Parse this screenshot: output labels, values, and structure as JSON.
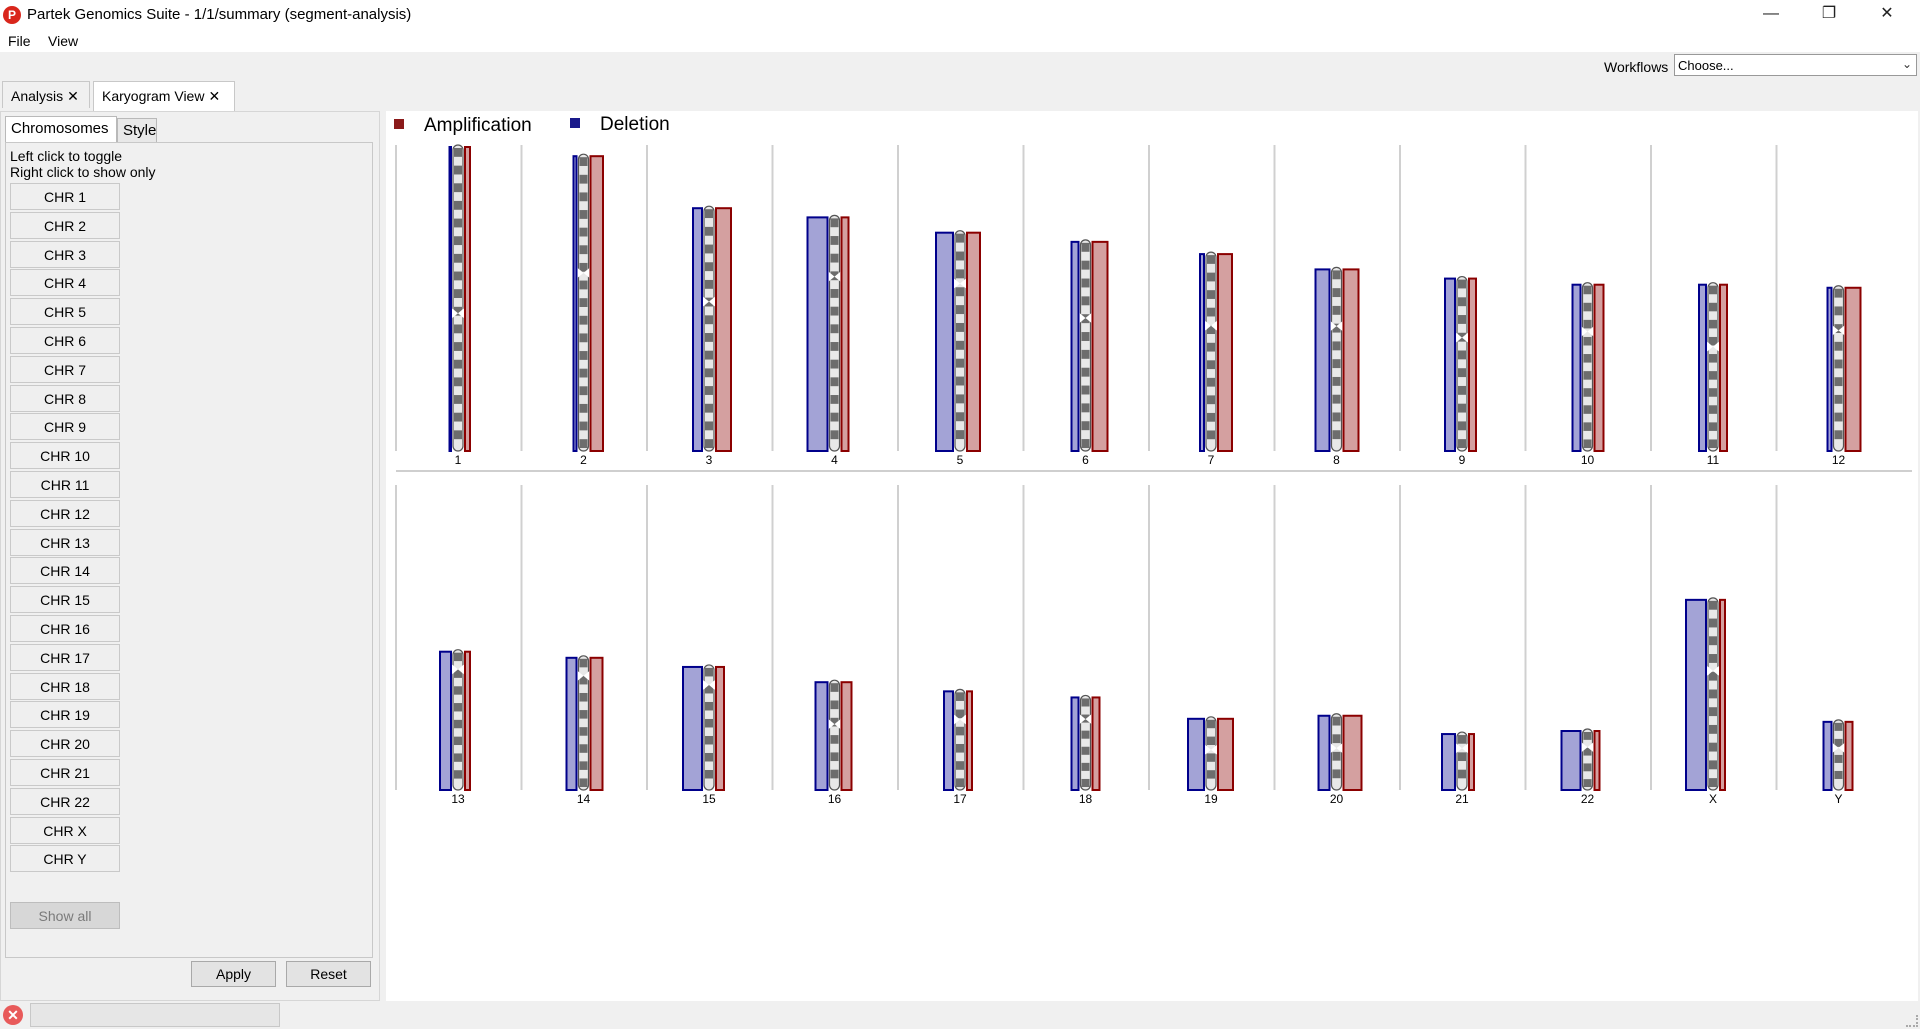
{
  "window": {
    "title": "Partek Genomics Suite - 1/1/summary (segment-analysis)",
    "min_icon": "minimize-icon",
    "max_icon": "maximize-icon",
    "close_icon": "close-icon"
  },
  "menu": {
    "file": "File",
    "view": "View"
  },
  "workflows": {
    "label": "Workflows",
    "selected": "Choose..."
  },
  "doc_tabs": [
    {
      "label": "Analysis",
      "close": "✕"
    },
    {
      "label": "Karyogram View",
      "close": "✕"
    }
  ],
  "left_panel": {
    "tabs": [
      "Chromosomes",
      "Style"
    ],
    "hint_line1": "Left click to toggle",
    "hint_line2": "Right click to show only",
    "chromosomes": [
      "CHR 1",
      "CHR 2",
      "CHR 3",
      "CHR 4",
      "CHR 5",
      "CHR 6",
      "CHR 7",
      "CHR 8",
      "CHR 9",
      "CHR 10",
      "CHR 11",
      "CHR 12",
      "CHR 13",
      "CHR 14",
      "CHR 15",
      "CHR 16",
      "CHR 17",
      "CHR 18",
      "CHR 19",
      "CHR 20",
      "CHR 21",
      "CHR 22",
      "CHR X",
      "CHR Y"
    ],
    "show_all": "Show all",
    "apply": "Apply",
    "reset": "Reset"
  },
  "karyogram": {
    "legend": [
      {
        "name": "Amplification",
        "color": "#8b1a1a"
      },
      {
        "name": "Deletion",
        "color": "#1a1a8b"
      }
    ],
    "colors": {
      "amp_fill": "#d4a0a0",
      "amp_line": "#8b0000",
      "del_fill": "#a3a3d6",
      "del_line": "#00008b"
    },
    "chromosomes": [
      {
        "label": "1",
        "length": 1.0,
        "cen": 0.55,
        "amp": 0.1,
        "del": 0.03
      },
      {
        "label": "2",
        "length": 0.97,
        "cen": 0.4,
        "amp": 0.25,
        "del": 0.06
      },
      {
        "label": "3",
        "length": 0.8,
        "cen": 0.39,
        "amp": 0.3,
        "del": 0.18
      },
      {
        "label": "4",
        "length": 0.77,
        "cen": 0.26,
        "amp": 0.14,
        "del": 0.4
      },
      {
        "label": "5",
        "length": 0.72,
        "cen": 0.24,
        "amp": 0.26,
        "del": 0.34
      },
      {
        "label": "6",
        "length": 0.69,
        "cen": 0.37,
        "amp": 0.3,
        "del": 0.14
      },
      {
        "label": "7",
        "length": 0.65,
        "cen": 0.37,
        "amp": 0.28,
        "del": 0.08
      },
      {
        "label": "8",
        "length": 0.6,
        "cen": 0.32,
        "amp": 0.3,
        "del": 0.28
      },
      {
        "label": "9",
        "length": 0.57,
        "cen": 0.35,
        "amp": 0.14,
        "del": 0.2
      },
      {
        "label": "10",
        "length": 0.55,
        "cen": 0.29,
        "amp": 0.18,
        "del": 0.16
      },
      {
        "label": "11",
        "length": 0.55,
        "cen": 0.38,
        "amp": 0.14,
        "del": 0.14
      },
      {
        "label": "12",
        "length": 0.54,
        "cen": 0.27,
        "amp": 0.3,
        "del": 0.08
      },
      {
        "label": "13",
        "length": 0.46,
        "cen": 0.14,
        "amp": 0.1,
        "del": 0.22
      },
      {
        "label": "14",
        "length": 0.44,
        "cen": 0.15,
        "amp": 0.24,
        "del": 0.2
      },
      {
        "label": "15",
        "length": 0.41,
        "cen": 0.16,
        "amp": 0.16,
        "del": 0.38
      },
      {
        "label": "16",
        "length": 0.36,
        "cen": 0.4,
        "amp": 0.2,
        "del": 0.24
      },
      {
        "label": "17",
        "length": 0.33,
        "cen": 0.3,
        "amp": 0.1,
        "del": 0.18
      },
      {
        "label": "18",
        "length": 0.31,
        "cen": 0.25,
        "amp": 0.14,
        "del": 0.14
      },
      {
        "label": "19",
        "length": 0.24,
        "cen": 0.45,
        "amp": 0.3,
        "del": 0.32
      },
      {
        "label": "20",
        "length": 0.25,
        "cen": 0.45,
        "amp": 0.36,
        "del": 0.22
      },
      {
        "label": "21",
        "length": 0.19,
        "cen": 0.28,
        "amp": 0.1,
        "del": 0.26
      },
      {
        "label": "22",
        "length": 0.2,
        "cen": 0.3,
        "amp": 0.1,
        "del": 0.38
      },
      {
        "label": "X",
        "length": 0.63,
        "cen": 0.38,
        "amp": 0.1,
        "del": 0.4
      },
      {
        "label": "Y",
        "length": 0.23,
        "cen": 0.4,
        "amp": 0.14,
        "del": 0.16
      }
    ]
  }
}
